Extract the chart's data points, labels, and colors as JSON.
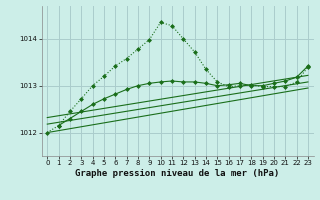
{
  "title": "Graphe pression niveau de la mer (hPa)",
  "bg_color": "#cceee8",
  "grid_color": "#aacccc",
  "line_color": "#1a6e1a",
  "xlim": [
    -0.5,
    23.5
  ],
  "ylim": [
    1011.5,
    1014.7
  ],
  "yticks": [
    1012,
    1013,
    1014
  ],
  "xticks": [
    0,
    1,
    2,
    3,
    4,
    5,
    6,
    7,
    8,
    9,
    10,
    11,
    12,
    13,
    14,
    15,
    16,
    17,
    18,
    19,
    20,
    21,
    22,
    23
  ],
  "main_line_x": [
    0,
    1,
    2,
    3,
    4,
    5,
    6,
    7,
    8,
    9,
    10,
    11,
    12,
    13,
    14,
    15,
    16,
    17,
    18,
    19,
    20,
    21,
    22,
    23
  ],
  "main_line_y": [
    1012.0,
    1012.15,
    1012.45,
    1012.72,
    1013.0,
    1013.2,
    1013.42,
    1013.58,
    1013.78,
    1013.98,
    1014.35,
    1014.28,
    1014.0,
    1013.72,
    1013.35,
    1013.08,
    1012.98,
    1013.0,
    1013.02,
    1012.98,
    1012.98,
    1012.98,
    1013.08,
    1013.4
  ],
  "trend1_x": [
    0,
    23
  ],
  "trend1_y": [
    1012.0,
    1012.95
  ],
  "trend2_x": [
    0,
    23
  ],
  "trend2_y": [
    1012.18,
    1013.08
  ],
  "trend3_x": [
    0,
    23
  ],
  "trend3_y": [
    1012.32,
    1013.22
  ],
  "second_line_x": [
    1,
    2,
    3,
    4,
    5,
    6,
    7,
    8,
    9,
    10,
    11,
    12,
    13,
    14,
    15,
    16,
    17,
    18,
    19,
    20,
    21,
    22,
    23
  ],
  "second_line_y": [
    1012.15,
    1012.3,
    1012.45,
    1012.6,
    1012.72,
    1012.82,
    1012.92,
    1013.0,
    1013.05,
    1013.08,
    1013.1,
    1013.08,
    1013.08,
    1013.05,
    1013.0,
    1013.02,
    1013.05,
    1013.0,
    1013.0,
    1013.05,
    1013.1,
    1013.18,
    1013.42
  ]
}
